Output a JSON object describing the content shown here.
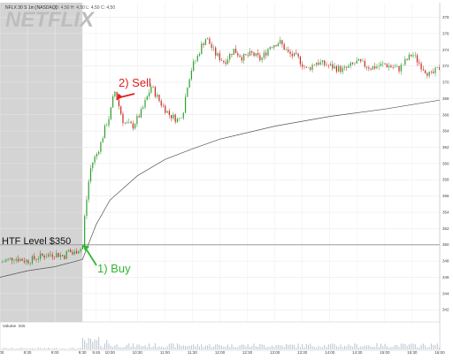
{
  "header": {
    "title": "NFLX 30 S 1m [NASDAQ]",
    "ohlc": "O: 4,50  H: 4,50  L: 4,50  C: 4,50"
  },
  "watermark": "NETFLIX",
  "colors": {
    "up": "#2e9e2e",
    "down": "#c4261f",
    "premarket_bg": "#d4d4d4",
    "vwap": "#555555",
    "htf_line": "#9a9a9a",
    "buy": "#2fb82f",
    "sell": "#e02020"
  },
  "annotations": {
    "htf_label": "HTF Level $350",
    "buy_label": "1) Buy",
    "sell_label": "2) Sell"
  },
  "volume_panel": {
    "label": "Volume",
    "value": "505"
  },
  "chart_data": {
    "type": "candlestick",
    "y_axis": {
      "ticks": [
        342,
        344,
        346,
        348,
        350,
        352,
        354,
        356,
        358,
        360,
        362,
        364,
        366,
        368,
        370,
        372,
        374,
        376,
        378
      ],
      "ylim": [
        340.5,
        379.8
      ]
    },
    "x_axis": {
      "ticks": [
        "8:00",
        "8:30",
        "9:00",
        "9:30",
        "9:45",
        "10:00",
        "10:30",
        "11:00",
        "11:30",
        "12:00",
        "12:30",
        "13:00",
        "13:30",
        "14:00",
        "14:30",
        "15:00",
        "15:30",
        "16:00"
      ]
    },
    "htf_level": 350,
    "premarket_end": "9:30",
    "price_path": [
      [
        "8:00",
        347.8
      ],
      [
        "8:15",
        348.4
      ],
      [
        "8:30",
        348.0
      ],
      [
        "8:45",
        348.6
      ],
      [
        "9:00",
        348.9
      ],
      [
        "9:10",
        348.6
      ],
      [
        "9:15",
        349.3
      ],
      [
        "9:20",
        348.8
      ],
      [
        "9:25",
        349.5
      ],
      [
        "9:30",
        349.5
      ],
      [
        "9:32",
        353.0
      ],
      [
        "9:35",
        356.0
      ],
      [
        "9:38",
        359.0
      ],
      [
        "9:42",
        360.5
      ],
      [
        "9:45",
        361.0
      ],
      [
        "9:50",
        362.5
      ],
      [
        "9:55",
        364.5
      ],
      [
        "10:00",
        366.0
      ],
      [
        "10:05",
        369.0
      ],
      [
        "10:10",
        367.0
      ],
      [
        "10:15",
        365.0
      ],
      [
        "10:25",
        364.6
      ],
      [
        "10:35",
        366.5
      ],
      [
        "10:45",
        369.5
      ],
      [
        "10:55",
        367.5
      ],
      [
        "11:05",
        366.0
      ],
      [
        "11:15",
        365.3
      ],
      [
        "11:20",
        366.5
      ],
      [
        "11:25",
        370.0
      ],
      [
        "11:30",
        372.0
      ],
      [
        "11:35",
        373.0
      ],
      [
        "11:40",
        374.5
      ],
      [
        "11:45",
        375.5
      ],
      [
        "11:55",
        373.5
      ],
      [
        "12:05",
        372.5
      ],
      [
        "12:15",
        374.0
      ],
      [
        "12:25",
        373.0
      ],
      [
        "12:35",
        373.5
      ],
      [
        "12:45",
        372.8
      ],
      [
        "12:55",
        374.5
      ],
      [
        "13:05",
        375.0
      ],
      [
        "13:15",
        373.5
      ],
      [
        "13:25",
        373.0
      ],
      [
        "13:35",
        371.5
      ],
      [
        "13:45",
        372.5
      ],
      [
        "14:00",
        372.0
      ],
      [
        "14:15",
        371.5
      ],
      [
        "14:30",
        372.5
      ],
      [
        "14:45",
        371.8
      ],
      [
        "15:00",
        372.2
      ],
      [
        "15:15",
        371.6
      ],
      [
        "15:30",
        373.5
      ],
      [
        "15:40",
        372.0
      ],
      [
        "15:50",
        370.8
      ],
      [
        "16:00",
        371.8
      ]
    ],
    "vwap_path": [
      [
        "8:00",
        346.0
      ],
      [
        "8:30",
        346.8
      ],
      [
        "9:00",
        347.3
      ],
      [
        "9:30",
        348.2
      ],
      [
        "9:45",
        352.5
      ],
      [
        "10:00",
        355.5
      ],
      [
        "10:30",
        358.5
      ],
      [
        "11:00",
        360.5
      ],
      [
        "11:30",
        361.8
      ],
      [
        "12:00",
        363.0
      ],
      [
        "13:00",
        364.6
      ],
      [
        "14:00",
        365.8
      ],
      [
        "15:00",
        366.7
      ],
      [
        "16:00",
        367.8
      ]
    ],
    "trades": [
      {
        "label": "1) Buy",
        "time": "9:30",
        "price": 350
      },
      {
        "label": "2) Sell",
        "time": "10:05",
        "price": 368
      }
    ]
  }
}
